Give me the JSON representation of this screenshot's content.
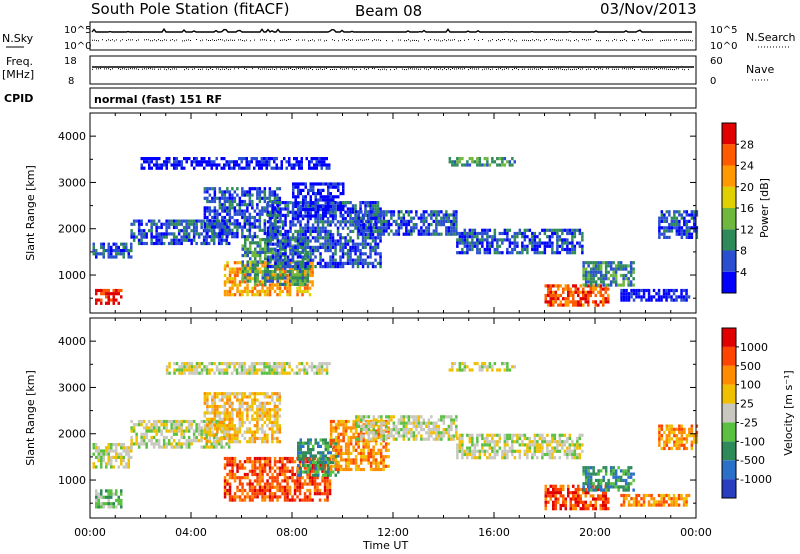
{
  "header": {
    "station": "South Pole Station (fitACF)",
    "beam": "Beam 08",
    "date": "03/Nov/2013"
  },
  "top_panels": {
    "nsky_label": "N.Sky",
    "nsky_ticks": [
      "10^5",
      "10^0"
    ],
    "nsearch_label": "N.Search",
    "nsearch_ticks": [
      "10^5",
      "10^0"
    ],
    "freq_label": "Freq.",
    "freq_unit": "[MHz]",
    "freq_ticks": [
      "18",
      "8"
    ],
    "nave_label": "Nave",
    "nave_ticks": [
      "60",
      "0"
    ],
    "cpid_label": "CPID",
    "cpid_value": "normal (fast) 151 RF"
  },
  "chart_data": [
    {
      "type": "heatmap",
      "name": "power",
      "ylabel": "Slant Range [km]",
      "yticks": [
        1000,
        2000,
        3000,
        4000
      ],
      "ylim": [
        180,
        4500
      ],
      "x": [
        "00:00",
        "04:00",
        "08:00",
        "12:00",
        "16:00",
        "20:00",
        "00:00"
      ],
      "xlim_hours": [
        0,
        24
      ],
      "colorbar": {
        "label": "Power [dB]",
        "ticks": [
          "4",
          "8",
          "12",
          "16",
          "20",
          "24",
          "28"
        ],
        "colors": [
          "#0000ff",
          "#2a4fd0",
          "#2f8a5a",
          "#6fb840",
          "#e0d000",
          "#ff9900",
          "#ff5a00",
          "#e00000"
        ]
      },
      "bands": [
        {
          "t0": 0.1,
          "t1": 1.6,
          "r0": 1400,
          "r1": 1700,
          "level": 1
        },
        {
          "t0": 0.2,
          "t1": 1.2,
          "r0": 400,
          "r1": 700,
          "level": 7
        },
        {
          "t0": 1.6,
          "t1": 5.5,
          "r0": 1700,
          "r1": 2200,
          "level": 1
        },
        {
          "t0": 4.5,
          "t1": 7.5,
          "r0": 1800,
          "r1": 2900,
          "level": 1
        },
        {
          "t0": 5.3,
          "t1": 8.8,
          "r0": 600,
          "r1": 1300,
          "level": 5
        },
        {
          "t0": 6.0,
          "t1": 8.6,
          "r0": 800,
          "r1": 1800,
          "level": 2
        },
        {
          "t0": 7.0,
          "t1": 11.5,
          "r0": 1200,
          "r1": 2600,
          "level": 1
        },
        {
          "t0": 8.0,
          "t1": 10.0,
          "r0": 2300,
          "r1": 3000,
          "level": 0
        },
        {
          "t0": 10.5,
          "t1": 14.5,
          "r0": 1900,
          "r1": 2400,
          "level": 1
        },
        {
          "t0": 14.5,
          "t1": 19.5,
          "r0": 1500,
          "r1": 2000,
          "level": 1
        },
        {
          "t0": 18.0,
          "t1": 20.5,
          "r0": 350,
          "r1": 800,
          "level": 6
        },
        {
          "t0": 19.5,
          "t1": 21.5,
          "r0": 800,
          "r1": 1300,
          "level": 2
        },
        {
          "t0": 21.0,
          "t1": 23.7,
          "r0": 450,
          "r1": 700,
          "level": 0
        },
        {
          "t0": 22.5,
          "t1": 24.0,
          "r0": 1800,
          "r1": 2400,
          "level": 1
        },
        {
          "t0": 14.2,
          "t1": 16.8,
          "r0": 3400,
          "r1": 3550,
          "level": 2
        },
        {
          "t0": 2.0,
          "t1": 9.5,
          "r0": 3300,
          "r1": 3550,
          "level": 0
        }
      ]
    },
    {
      "type": "heatmap",
      "name": "velocity",
      "ylabel": "Slant Range [km]",
      "yticks": [
        1000,
        2000,
        3000,
        4000
      ],
      "ylim": [
        180,
        4500
      ],
      "x": [
        "00:00",
        "04:00",
        "08:00",
        "12:00",
        "16:00",
        "20:00",
        "00:00"
      ],
      "xlabel": "Time UT",
      "xlim_hours": [
        0,
        24
      ],
      "colorbar": {
        "label": "Velocity [m s⁻¹]",
        "ticks": [
          "1000",
          "500",
          "100",
          "25",
          "-25",
          "-100",
          "-500",
          "-1000"
        ],
        "colors": [
          "#2a3fc0",
          "#2a70c8",
          "#2f8a5a",
          "#59c040",
          "#c8c8c0",
          "#f0c000",
          "#ff8c00",
          "#ff4400",
          "#e00000"
        ]
      },
      "bands": [
        {
          "t0": 0.1,
          "t1": 1.6,
          "r0": 1300,
          "r1": 1800,
          "level": 4
        },
        {
          "t0": 0.2,
          "t1": 1.2,
          "r0": 400,
          "r1": 800,
          "level": 3
        },
        {
          "t0": 1.6,
          "t1": 5.5,
          "r0": 1700,
          "r1": 2300,
          "level": 4
        },
        {
          "t0": 4.5,
          "t1": 7.5,
          "r0": 1800,
          "r1": 2900,
          "level": 5
        },
        {
          "t0": 5.3,
          "t1": 9.5,
          "r0": 600,
          "r1": 1500,
          "level": 7
        },
        {
          "t0": 8.2,
          "t1": 9.8,
          "r0": 1100,
          "r1": 1900,
          "level": 2
        },
        {
          "t0": 9.5,
          "t1": 11.8,
          "r0": 1200,
          "r1": 2300,
          "level": 6
        },
        {
          "t0": 10.5,
          "t1": 14.5,
          "r0": 1900,
          "r1": 2400,
          "level": 4
        },
        {
          "t0": 14.5,
          "t1": 19.5,
          "r0": 1500,
          "r1": 2000,
          "level": 4
        },
        {
          "t0": 18.0,
          "t1": 20.5,
          "r0": 350,
          "r1": 900,
          "level": 7
        },
        {
          "t0": 19.5,
          "t1": 21.5,
          "r0": 800,
          "r1": 1300,
          "level": 2
        },
        {
          "t0": 21.0,
          "t1": 23.7,
          "r0": 450,
          "r1": 700,
          "level": 6
        },
        {
          "t0": 22.5,
          "t1": 24.0,
          "r0": 1700,
          "r1": 2200,
          "level": 6
        },
        {
          "t0": 14.2,
          "t1": 16.8,
          "r0": 3400,
          "r1": 3550,
          "level": 4
        },
        {
          "t0": 3.0,
          "t1": 9.5,
          "r0": 3300,
          "r1": 3550,
          "level": 4
        }
      ]
    }
  ]
}
